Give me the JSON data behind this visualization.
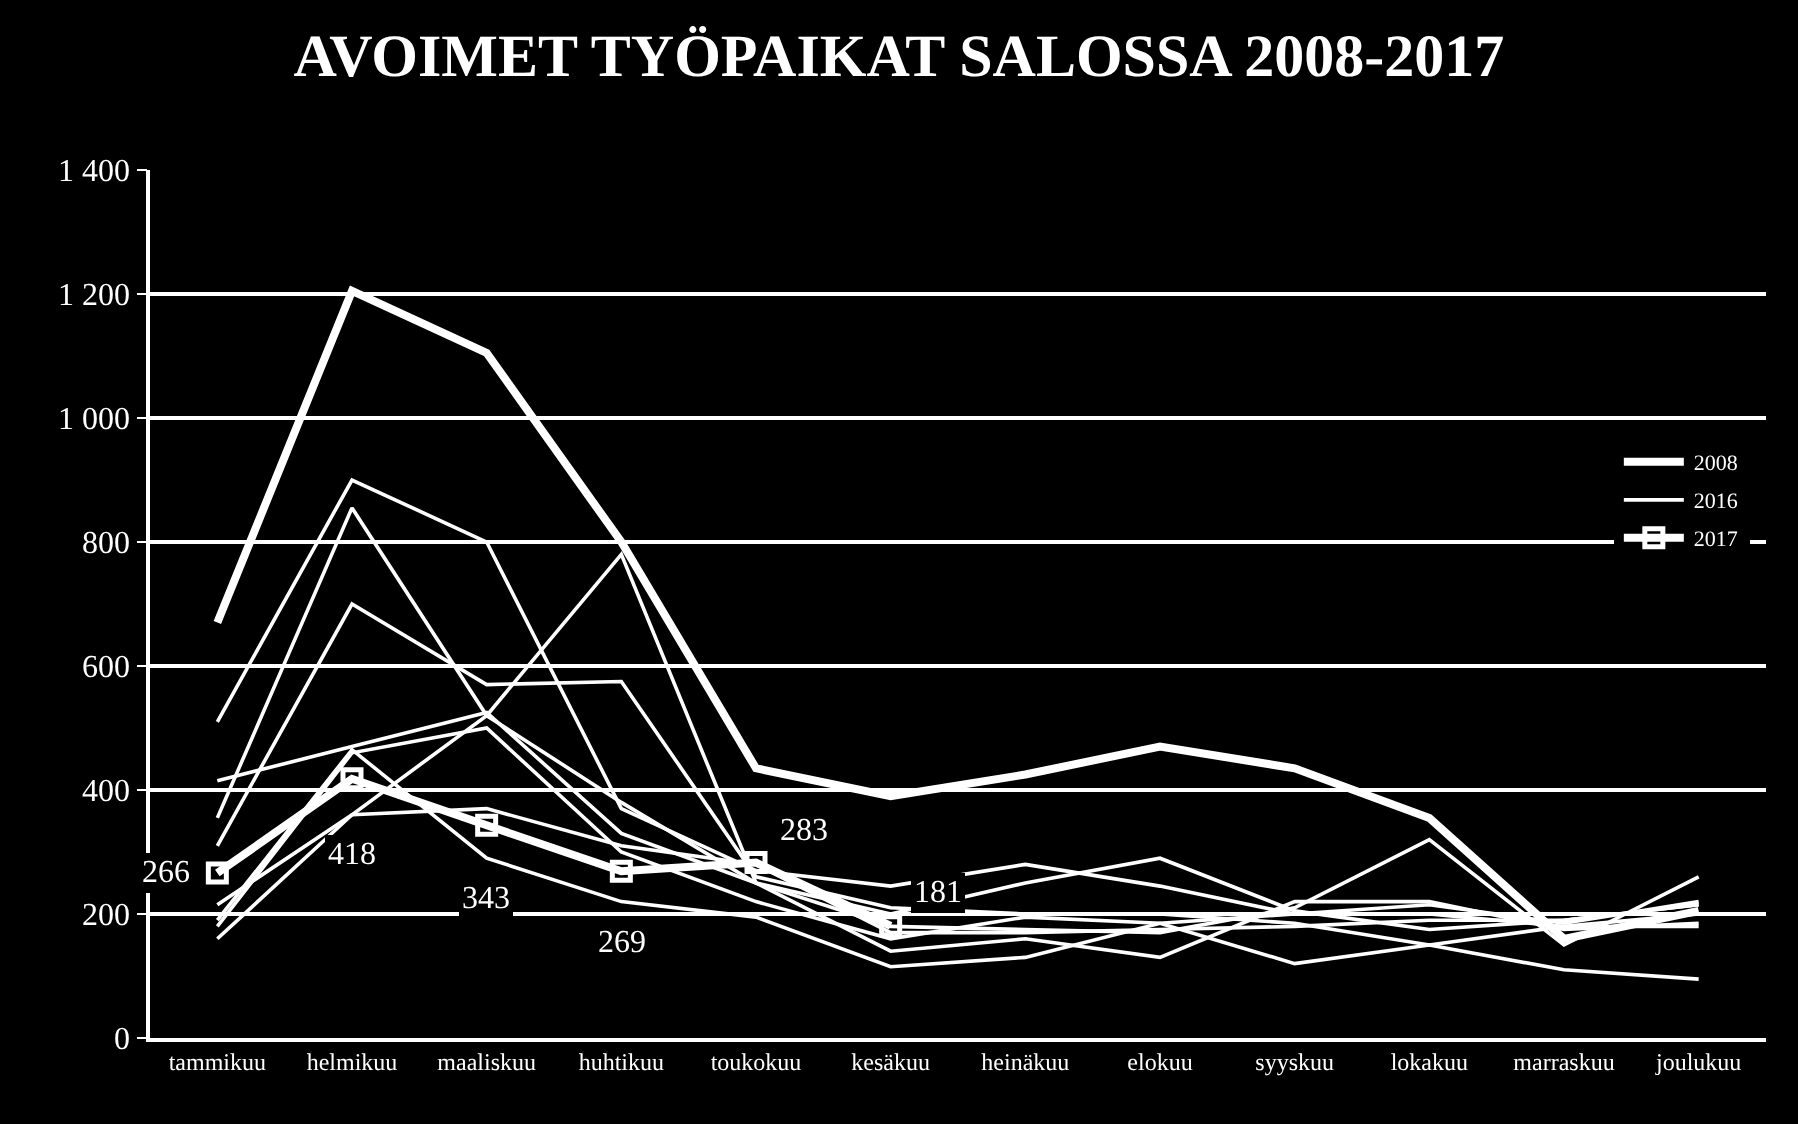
{
  "chart_data": {
    "type": "line",
    "title": "AVOIMET TYÖPAIKAT SALOSSA 2008-2017",
    "categories": [
      "tammikuu",
      "helmikuu",
      "maaliskuu",
      "huhtikuu",
      "toukokuu",
      "kesäkuu",
      "heinäkuu",
      "elokuu",
      "syyskuu",
      "lokakuu",
      "marraskuu",
      "joulukuu"
    ],
    "series": [
      {
        "name": "2008",
        "color": "#ffffff",
        "values": [
          670,
          1205,
          1105,
          800,
          435,
          390,
          425,
          470,
          435,
          355,
          160,
          205
        ]
      },
      {
        "color": "#ffffff",
        "values": [
          510,
          900,
          800,
          370,
          270,
          245,
          280,
          245,
          200,
          215,
          185,
          220
        ]
      },
      {
        "color": "#ffffff",
        "values": [
          355,
          855,
          520,
          380,
          250,
          200,
          250,
          290,
          205,
          175,
          190,
          215
        ]
      },
      {
        "color": "#ffffff",
        "values": [
          310,
          700,
          570,
          575,
          260,
          210,
          200,
          200,
          185,
          150,
          180,
          200
        ]
      },
      {
        "color": "#ffffff",
        "values": [
          415,
          470,
          525,
          330,
          250,
          180,
          175,
          170,
          210,
          320,
          150,
          260
        ]
      },
      {
        "color": "#ffffff",
        "values": [
          180,
          460,
          500,
          300,
          220,
          160,
          195,
          185,
          200,
          200,
          180,
          180
        ]
      },
      {
        "color": "#ffffff",
        "values": [
          160,
          360,
          520,
          780,
          250,
          140,
          160,
          130,
          220,
          220,
          175,
          185
        ]
      },
      {
        "color": "#ffffff",
        "values": [
          215,
          360,
          370,
          310,
          280,
          170,
          170,
          175,
          180,
          190,
          190,
          215
        ]
      },
      {
        "name": "2016",
        "color": "#ffffff",
        "values": [
          190,
          465,
          290,
          220,
          195,
          115,
          130,
          185,
          120,
          150,
          110,
          95
        ]
      },
      {
        "name": "2017",
        "color": "#ffffff",
        "marker": "square",
        "values": [
          266,
          418,
          343,
          269,
          283,
          181,
          null,
          null,
          null,
          null,
          null,
          null
        ],
        "value_labels": [
          "266",
          "418",
          "343",
          "269",
          "283",
          "181",
          null,
          null,
          null,
          null,
          null,
          null
        ]
      }
    ],
    "ylim": [
      0,
      1400
    ],
    "yticks": [
      0,
      200,
      400,
      600,
      800,
      {
        "value": 1000,
        "label": "1 000"
      },
      {
        "value": 1200,
        "label": "1 200"
      },
      {
        "value": 1400,
        "label": "1 400"
      }
    ],
    "grid": "y",
    "legend": "right",
    "marker": "none",
    "line_style": "solid"
  }
}
